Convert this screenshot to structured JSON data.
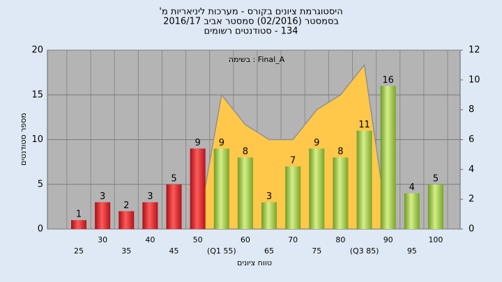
{
  "chart_data": {
    "type": "bar",
    "title": [
      "היסטוגרמת ציונים בקורס - מערכות ליניאריות מ'",
      "בסמסטר  (02/2016)  סמסטר אביב 2016/17",
      "134 - סטודנטים רשומים"
    ],
    "annotation": "בשימה : Final_A",
    "x_label": "טווח ציונים",
    "y_label": "מספר סטודנטים",
    "categories": [
      "25",
      "30",
      "35",
      "40",
      "45",
      "50",
      "(Q1 55)",
      "60",
      "65",
      "70",
      "75",
      "80",
      "(Q3 85)",
      "90",
      "95",
      "100"
    ],
    "series": [
      {
        "values": [
          1,
          3,
          2,
          3,
          5,
          9,
          9,
          8,
          3,
          7,
          9,
          8,
          11,
          16,
          4,
          5
        ],
        "colors": [
          "red",
          "red",
          "red",
          "red",
          "red",
          "red",
          "green",
          "green",
          "green",
          "green",
          "green",
          "green",
          "green",
          "green",
          "green",
          "green"
        ]
      },
      {
        "type": "area",
        "axis": "y2",
        "color": "#ffc84a",
        "values": [
          null,
          null,
          null,
          null,
          null,
          0,
          9,
          7,
          6,
          6,
          8,
          9,
          11,
          0,
          null,
          null
        ]
      }
    ],
    "ylim": [
      0,
      20
    ],
    "yticks": [
      0,
      5,
      10,
      15,
      20
    ],
    "y2lim": [
      0,
      12
    ],
    "y2ticks": [
      0,
      2,
      4,
      6,
      8,
      10,
      12
    ],
    "grid": true
  }
}
